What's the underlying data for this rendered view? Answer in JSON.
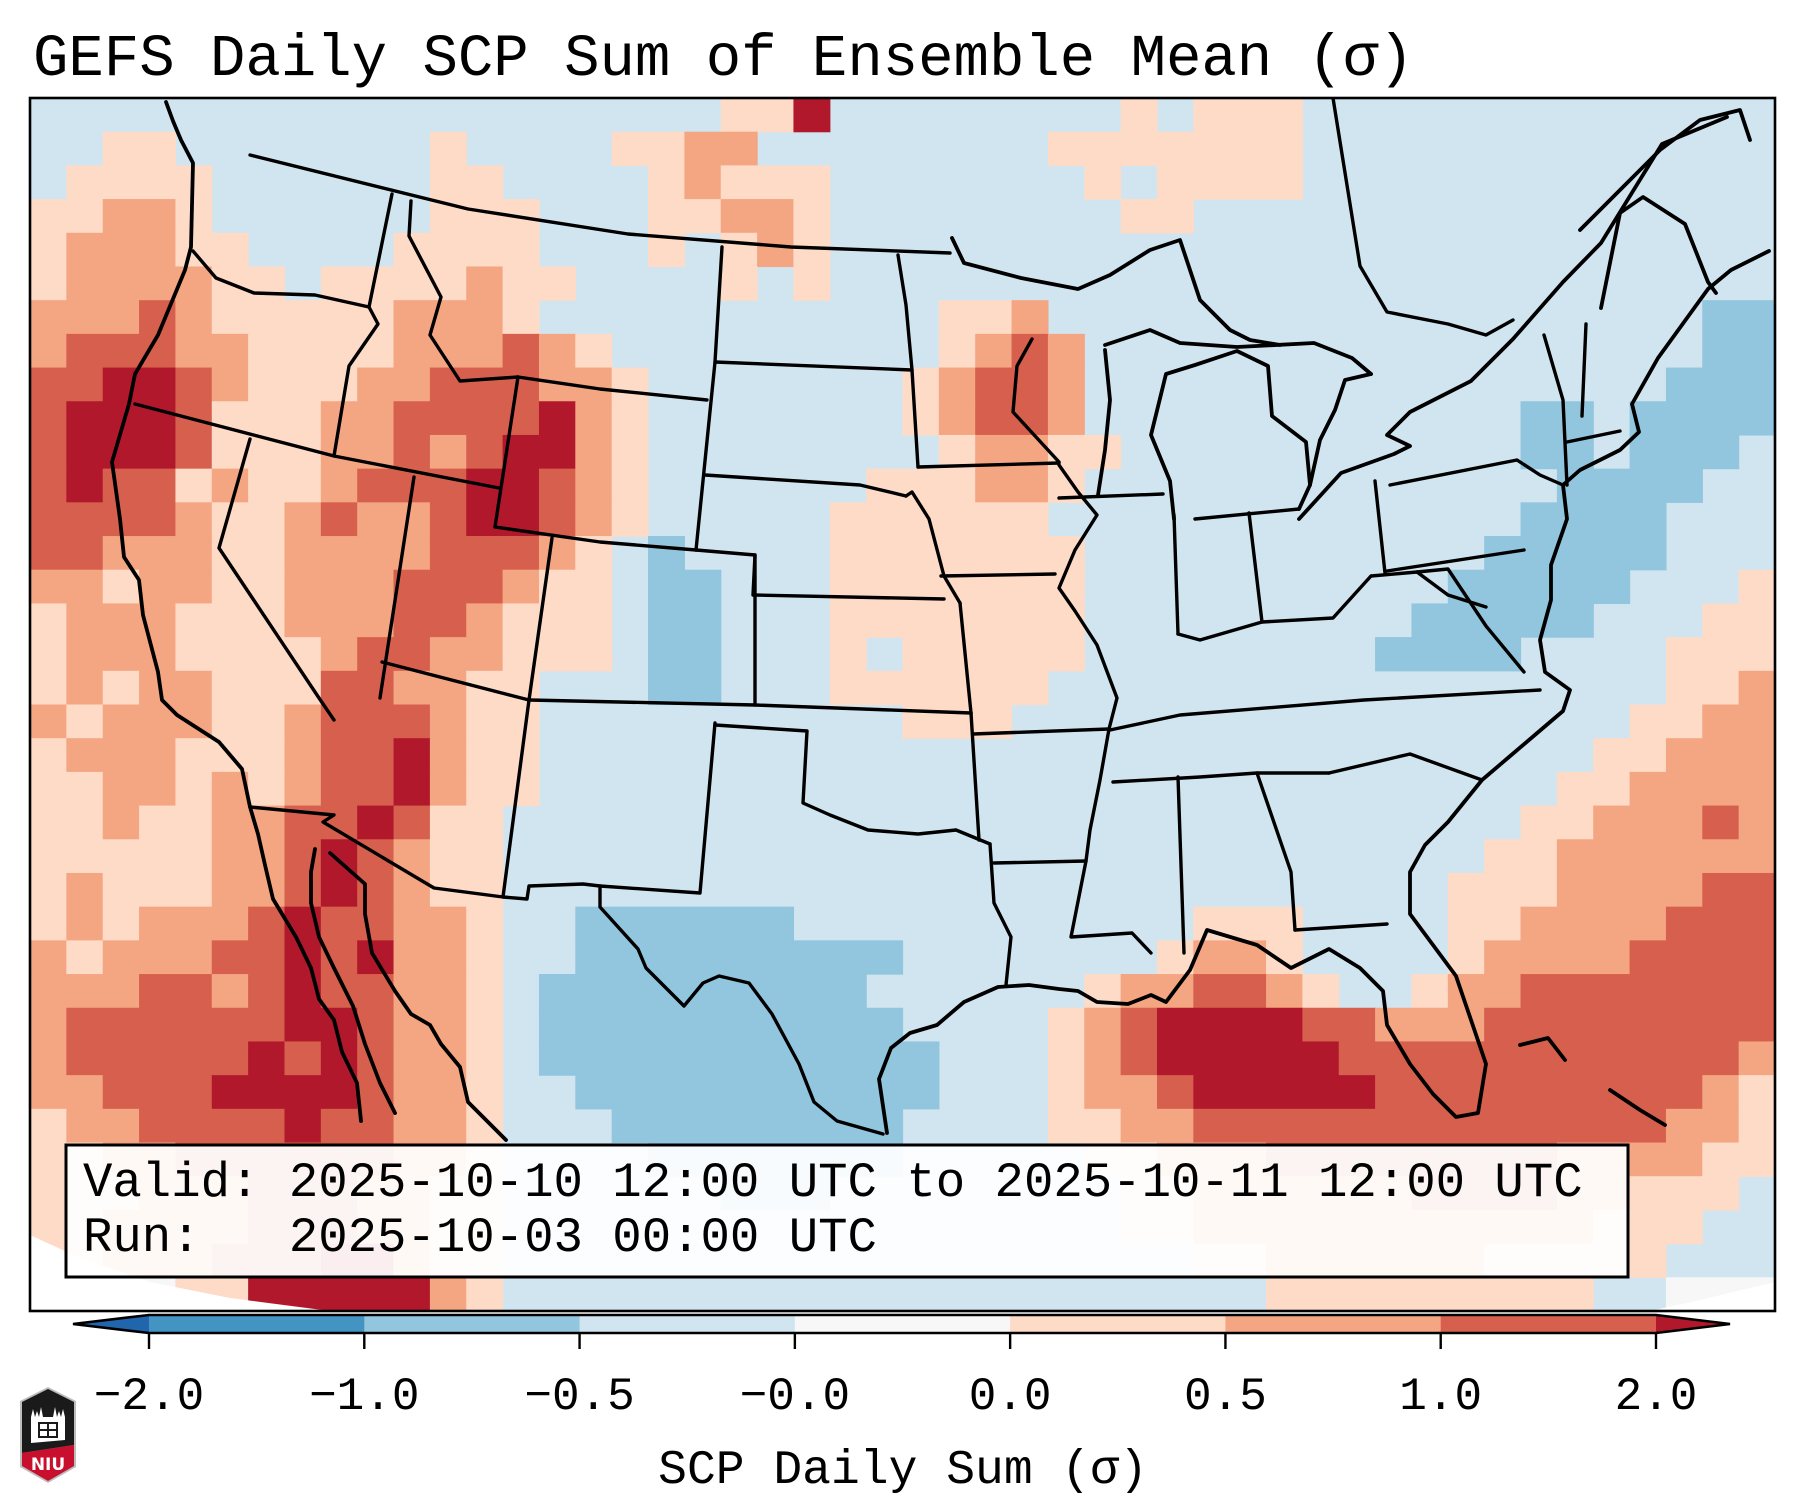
{
  "chart_data": {
    "type": "heatmap",
    "title": "GEFS Daily SCP Sum of Ensemble Mean (σ)",
    "annotations": {
      "valid_line": "Valid: 2025-10-10 12:00 UTC to 2025-10-11 12:00 UTC",
      "run_line": "Run:   2025-10-03 00:00 UTC"
    },
    "map": {
      "region": "CONUS",
      "features": [
        "coastlines",
        "country-borders",
        "state-borders"
      ],
      "value_units": "σ"
    },
    "colorbar": {
      "label": "SCP Daily Sum (σ)",
      "orientation": "horizontal",
      "placement": "bottom",
      "extend": "both",
      "spacing": "uniform",
      "boundaries": [
        -2.0,
        -1.0,
        -0.5,
        -0.0,
        0.0,
        0.5,
        1.0,
        2.0
      ],
      "tick_labels": [
        "−2.0",
        "−1.0",
        "−0.5",
        "−0.0",
        "0.0",
        "0.5",
        "1.0",
        "2.0"
      ],
      "colors": [
        "#2166ac",
        "#4393c3",
        "#92c5de",
        "#d1e5f0",
        "#f7f7f7",
        "#fddbc7",
        "#f4a582",
        "#d6604d",
        "#b2182b"
      ]
    },
    "grid": {
      "cell_value_meaning": "digit = colorbar bin index (0 = below −2.0 ... 8 = above 2.0)",
      "rows": [
        "333333333333333333355833333333535553333333333333",
        "335533333335333355663333333355555553333333333333",
        "355553333335533335655533333335355553333333333333",
        "556653333335553335566533333333553333333333333333",
        "566655333355553335356533333333333333333333333333",
        "566665535555655333353533333333333333333333333333",
        "666765555566653333333333355633333333333333333322",
        "677766555566676533333333356763333333333333333322",
        "778876555667776653333333567763333333333333333222",
        "788875556677778653333333567763333333333332232222",
        "788875556676788653333333356655333333333332232223",
        "787756556777887653333335556653333333333333222233",
        "777765567667887653333355555533333333333332222333",
        "776665566667776532333355555553333333333322222333",
        "665665566677765532233355555553333333333222223335",
        "566655566677655532233355555553333333332222233355",
        "566655556776655532233353555553333333322223333555",
        "565665557766553332233355555533333333333333333556",
        "656665567776553333333333555333333333333333335566",
        "566655567786553333333333333333333333333333355666",
        "556656567786553333333333333333333333333333556666",
        "556556677875533333333333333333333333333335566676",
        "555556678765533333333333333333333333333355666666",
        "565556678765533333333333333333333333333555666677",
        "565666787766533222222333333333335553333556666777",
        "656667787866533222222222333333356653333566667777",
        "666776787766532222222223333335667765335667777777",
        "677777788766532222222222333356788887766677777777",
        "677777878766532222222222233356788888777777777776",
        "667778888766533222222222233356678888877777777765",
        "566777787766533322222222333355667777777777777665",
        "556677777766533332222222333335566677777777666655",
        "555666777665533333322233333333556666667777665553",
        "556666777665533333333333333333556666666666655533",
        "556667778865533333333333333333335566666655555333",
        "444455888886533333333333333333333355555555533444"
      ]
    }
  },
  "logo": {
    "icon": "niu-shield-logo",
    "text": "NIU"
  }
}
